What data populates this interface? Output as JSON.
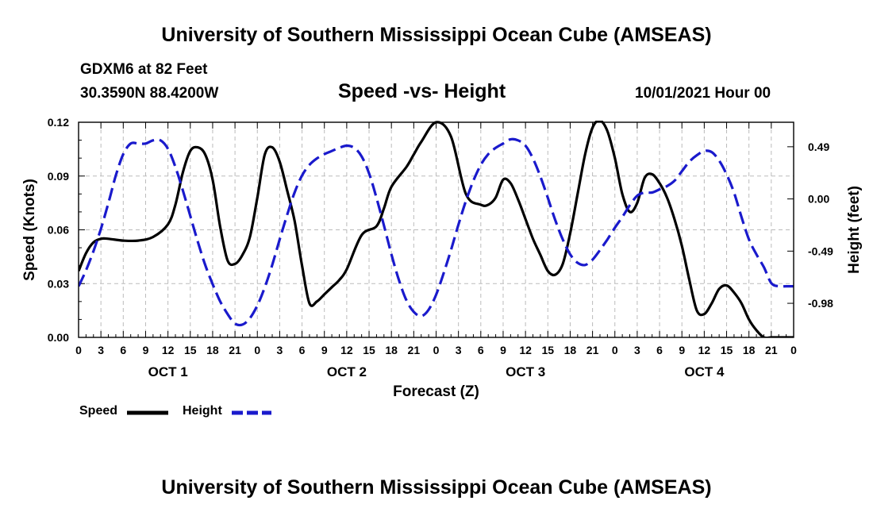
{
  "page": {
    "title_top": "University of Southern Mississippi Ocean Cube (AMSEAS)",
    "title_bottom": "University of Southern Mississippi Ocean Cube (AMSEAS)",
    "station": "GDXM6 at 82 Feet",
    "coords": "30.3590N  88.4200W",
    "chart_title": "Speed -vs- Height",
    "datetime": "10/01/2021 Hour 00"
  },
  "legend": {
    "speed_label": "Speed",
    "height_label": "Height"
  },
  "colors": {
    "speed": "#000000",
    "height": "#1a1acc",
    "grid": "#bbbbbb"
  },
  "chart_data": {
    "type": "line",
    "title": "Speed -vs- Height",
    "xlabel": "Forecast (Z)",
    "ylabel": "Speed (Knots)",
    "y2label": "Height (feet)",
    "xlim": [
      0,
      96
    ],
    "ylim": [
      0,
      0.12
    ],
    "y2lim": [
      -1.3,
      0.72
    ],
    "grid": true,
    "x_ticks": [
      0,
      3,
      6,
      9,
      12,
      15,
      18,
      21,
      24,
      27,
      30,
      33,
      36,
      39,
      42,
      45,
      48,
      51,
      54,
      57,
      60,
      63,
      66,
      69,
      72,
      75,
      78,
      81,
      84,
      87,
      90,
      93,
      96
    ],
    "x_tick_labels": [
      "0",
      "3",
      "6",
      "9",
      "12",
      "15",
      "18",
      "21",
      "0",
      "3",
      "6",
      "9",
      "12",
      "15",
      "18",
      "21",
      "0",
      "3",
      "6",
      "9",
      "12",
      "15",
      "18",
      "21",
      "0",
      "3",
      "6",
      "9",
      "12",
      "15",
      "18",
      "21",
      "0"
    ],
    "day_labels": [
      {
        "hour": 12,
        "label": "OCT 1"
      },
      {
        "hour": 36,
        "label": "OCT 2"
      },
      {
        "hour": 60,
        "label": "OCT 3"
      },
      {
        "hour": 84,
        "label": "OCT 4"
      }
    ],
    "y_ticks": [
      0,
      0.03,
      0.06,
      0.09,
      0.12
    ],
    "y_tick_labels": [
      "0.00",
      "0.03",
      "0.06",
      "0.09",
      "0.12"
    ],
    "y2_ticks": [
      0.49,
      0.0,
      -0.49,
      -0.98
    ],
    "y2_tick_labels": [
      "0.49",
      "0.00",
      "-0.49",
      "-0.98"
    ],
    "series": [
      {
        "name": "Speed",
        "axis": "left",
        "style": "solid",
        "x": [
          0,
          1,
          2,
          3,
          4,
          6,
          8,
          10,
          12,
          13,
          14,
          15,
          16,
          17,
          18,
          19,
          20,
          21,
          22,
          23,
          24,
          25,
          26,
          27,
          28,
          29,
          30,
          31,
          32,
          33,
          34,
          35,
          36,
          38,
          40,
          41,
          42,
          44,
          45,
          46,
          48,
          50,
          52,
          54,
          55,
          56,
          57,
          58,
          59,
          60,
          61,
          62,
          63,
          64,
          65,
          66,
          67,
          68,
          69,
          70,
          71,
          72,
          73,
          74,
          75,
          76,
          77,
          78,
          79,
          80,
          81,
          82,
          83,
          84,
          85,
          86,
          87,
          88,
          89,
          90,
          91,
          92,
          93,
          94,
          95,
          96
        ],
        "values": [
          0.037,
          0.047,
          0.053,
          0.055,
          0.055,
          0.054,
          0.054,
          0.056,
          0.063,
          0.074,
          0.092,
          0.104,
          0.106,
          0.102,
          0.088,
          0.062,
          0.043,
          0.041,
          0.046,
          0.056,
          0.078,
          0.102,
          0.106,
          0.098,
          0.082,
          0.065,
          0.04,
          0.019,
          0.02,
          0.024,
          0.028,
          0.032,
          0.038,
          0.057,
          0.062,
          0.072,
          0.084,
          0.095,
          0.102,
          0.109,
          0.12,
          0.112,
          0.08,
          0.074,
          0.074,
          0.078,
          0.088,
          0.086,
          0.077,
          0.066,
          0.055,
          0.046,
          0.037,
          0.035,
          0.041,
          0.058,
          0.08,
          0.102,
          0.117,
          0.121,
          0.115,
          0.1,
          0.08,
          0.07,
          0.075,
          0.089,
          0.091,
          0.086,
          0.078,
          0.066,
          0.051,
          0.032,
          0.015,
          0.013,
          0.019,
          0.027,
          0.029,
          0.025,
          0.019,
          0.01,
          0.004,
          0.0,
          0.0,
          0.0,
          0.0,
          0.0
        ]
      },
      {
        "name": "Height",
        "axis": "right",
        "style": "dashed",
        "x": [
          0,
          1,
          2,
          3,
          4,
          5,
          6,
          7,
          8,
          9,
          10,
          11,
          12,
          13,
          14,
          15,
          16,
          17,
          18,
          19,
          20,
          21,
          22,
          23,
          24,
          25,
          26,
          27,
          28,
          29,
          30,
          31,
          32,
          33,
          34,
          35,
          36,
          37,
          38,
          39,
          40,
          41,
          42,
          43,
          44,
          45,
          46,
          47,
          48,
          49,
          50,
          51,
          52,
          53,
          54,
          55,
          56,
          57,
          58,
          59,
          60,
          61,
          62,
          63,
          64,
          65,
          66,
          67,
          68,
          69,
          70,
          71,
          72,
          73,
          74,
          75,
          76,
          77,
          78,
          79,
          80,
          81,
          82,
          83,
          84,
          85,
          86,
          87,
          88,
          89,
          90,
          91,
          92,
          93,
          94,
          95,
          96
        ],
        "values": [
          -0.82,
          -0.67,
          -0.49,
          -0.28,
          -0.04,
          0.22,
          0.42,
          0.52,
          0.52,
          0.52,
          0.55,
          0.55,
          0.47,
          0.3,
          0.08,
          -0.16,
          -0.4,
          -0.62,
          -0.8,
          -0.96,
          -1.08,
          -1.17,
          -1.18,
          -1.12,
          -1.0,
          -0.83,
          -0.62,
          -0.38,
          -0.15,
          0.06,
          0.22,
          0.32,
          0.38,
          0.42,
          0.45,
          0.48,
          0.5,
          0.48,
          0.4,
          0.24,
          0.01,
          -0.25,
          -0.52,
          -0.76,
          -0.95,
          -1.06,
          -1.1,
          -1.04,
          -0.9,
          -0.7,
          -0.48,
          -0.24,
          -0.02,
          0.17,
          0.32,
          0.42,
          0.48,
          0.52,
          0.56,
          0.55,
          0.5,
          0.38,
          0.21,
          0.01,
          -0.2,
          -0.38,
          -0.52,
          -0.6,
          -0.62,
          -0.57,
          -0.48,
          -0.38,
          -0.27,
          -0.17,
          -0.06,
          0.03,
          0.06,
          0.06,
          0.09,
          0.12,
          0.17,
          0.26,
          0.35,
          0.41,
          0.45,
          0.44,
          0.36,
          0.23,
          0.06,
          -0.17,
          -0.38,
          -0.52,
          -0.64,
          -0.79,
          -0.82,
          -0.82,
          -0.82
        ]
      }
    ]
  }
}
